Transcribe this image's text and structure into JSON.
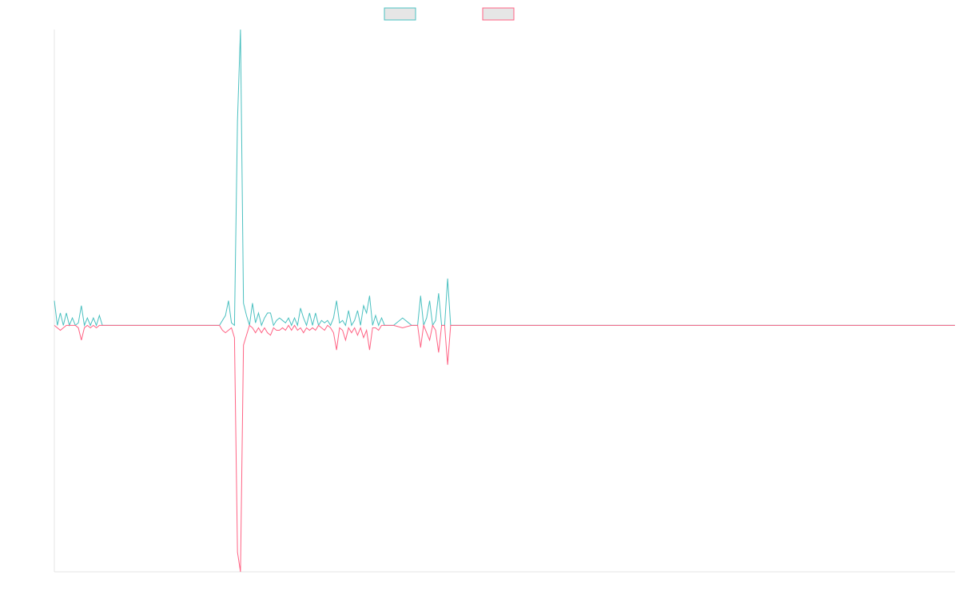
{
  "chart_data": {
    "type": "line",
    "x": [
      0,
      1,
      2,
      3,
      4,
      5,
      6,
      7,
      8,
      9,
      10,
      11,
      12,
      13,
      14,
      15,
      16,
      55,
      56,
      57,
      58,
      59,
      60,
      61,
      62,
      63,
      64,
      65,
      66,
      67,
      68,
      69,
      70,
      71,
      72,
      73,
      74,
      75,
      76,
      77,
      78,
      79,
      80,
      81,
      82,
      83,
      84,
      85,
      86,
      87,
      88,
      89,
      90,
      91,
      92,
      93,
      94,
      95,
      96,
      97,
      98,
      99,
      100,
      101,
      102,
      103,
      104,
      105,
      106,
      107,
      108,
      109,
      110,
      111,
      113,
      116,
      119,
      121,
      122,
      123,
      124,
      125,
      126,
      127,
      128,
      129,
      130,
      131,
      132,
      300
    ],
    "series": [
      {
        "color": "#4bc0c0",
        "values": [
          0.1,
          0,
          0.05,
          0,
          0.05,
          0,
          0.03,
          0,
          0.01,
          0.08,
          0,
          0.03,
          0,
          0.03,
          0,
          0.04,
          0,
          0,
          0.02,
          0.04,
          0.1,
          0.01,
          0,
          0.83,
          1.2,
          0.09,
          0.04,
          0,
          0.09,
          0.01,
          0.05,
          0,
          0.03,
          0.05,
          0.05,
          0,
          0.02,
          0.03,
          0.02,
          0.01,
          0.03,
          0,
          0.03,
          0,
          0.07,
          0.03,
          0,
          0.05,
          0,
          0.05,
          0,
          0.02,
          0.01,
          0.02,
          0,
          0.03,
          0.1,
          0.01,
          0.02,
          0,
          0.06,
          0,
          0.02,
          0.06,
          0,
          0.08,
          0.05,
          0.12,
          0,
          0.04,
          0,
          0.03,
          0,
          0,
          0,
          0.03,
          0,
          0,
          0.12,
          0,
          0.03,
          0.1,
          0,
          0.02,
          0.13,
          0,
          0,
          0.19,
          0,
          0
        ]
      },
      {
        "color": "#ff6384",
        "values": [
          0,
          -0.01,
          -0.02,
          -0.01,
          0,
          0,
          0,
          0,
          -0.01,
          -0.06,
          -0.01,
          0,
          -0.01,
          0,
          -0.01,
          0,
          0,
          0,
          -0.02,
          -0.03,
          -0.02,
          -0.01,
          -0.05,
          -0.92,
          -1.0,
          -0.08,
          -0.04,
          0,
          -0.01,
          -0.03,
          -0.01,
          -0.03,
          -0.01,
          -0.03,
          -0.04,
          -0.01,
          -0.02,
          -0.02,
          -0.01,
          -0.02,
          0,
          -0.02,
          0,
          -0.02,
          -0.01,
          -0.03,
          -0.01,
          -0.02,
          -0.01,
          -0.02,
          0,
          -0.01,
          -0.02,
          0,
          -0.01,
          -0.03,
          -0.1,
          -0.01,
          -0.02,
          -0.06,
          -0.01,
          -0.03,
          -0.01,
          -0.04,
          -0.01,
          -0.05,
          -0.02,
          -0.1,
          -0.01,
          -0.01,
          -0.02,
          0,
          0,
          0,
          0,
          -0.01,
          0,
          0,
          -0.09,
          0,
          -0.03,
          -0.06,
          0,
          -0.02,
          -0.11,
          0,
          0,
          -0.16,
          0,
          0
        ]
      }
    ],
    "xlim": [
      0,
      300
    ],
    "ylim": [
      -1,
      1.2
    ]
  }
}
